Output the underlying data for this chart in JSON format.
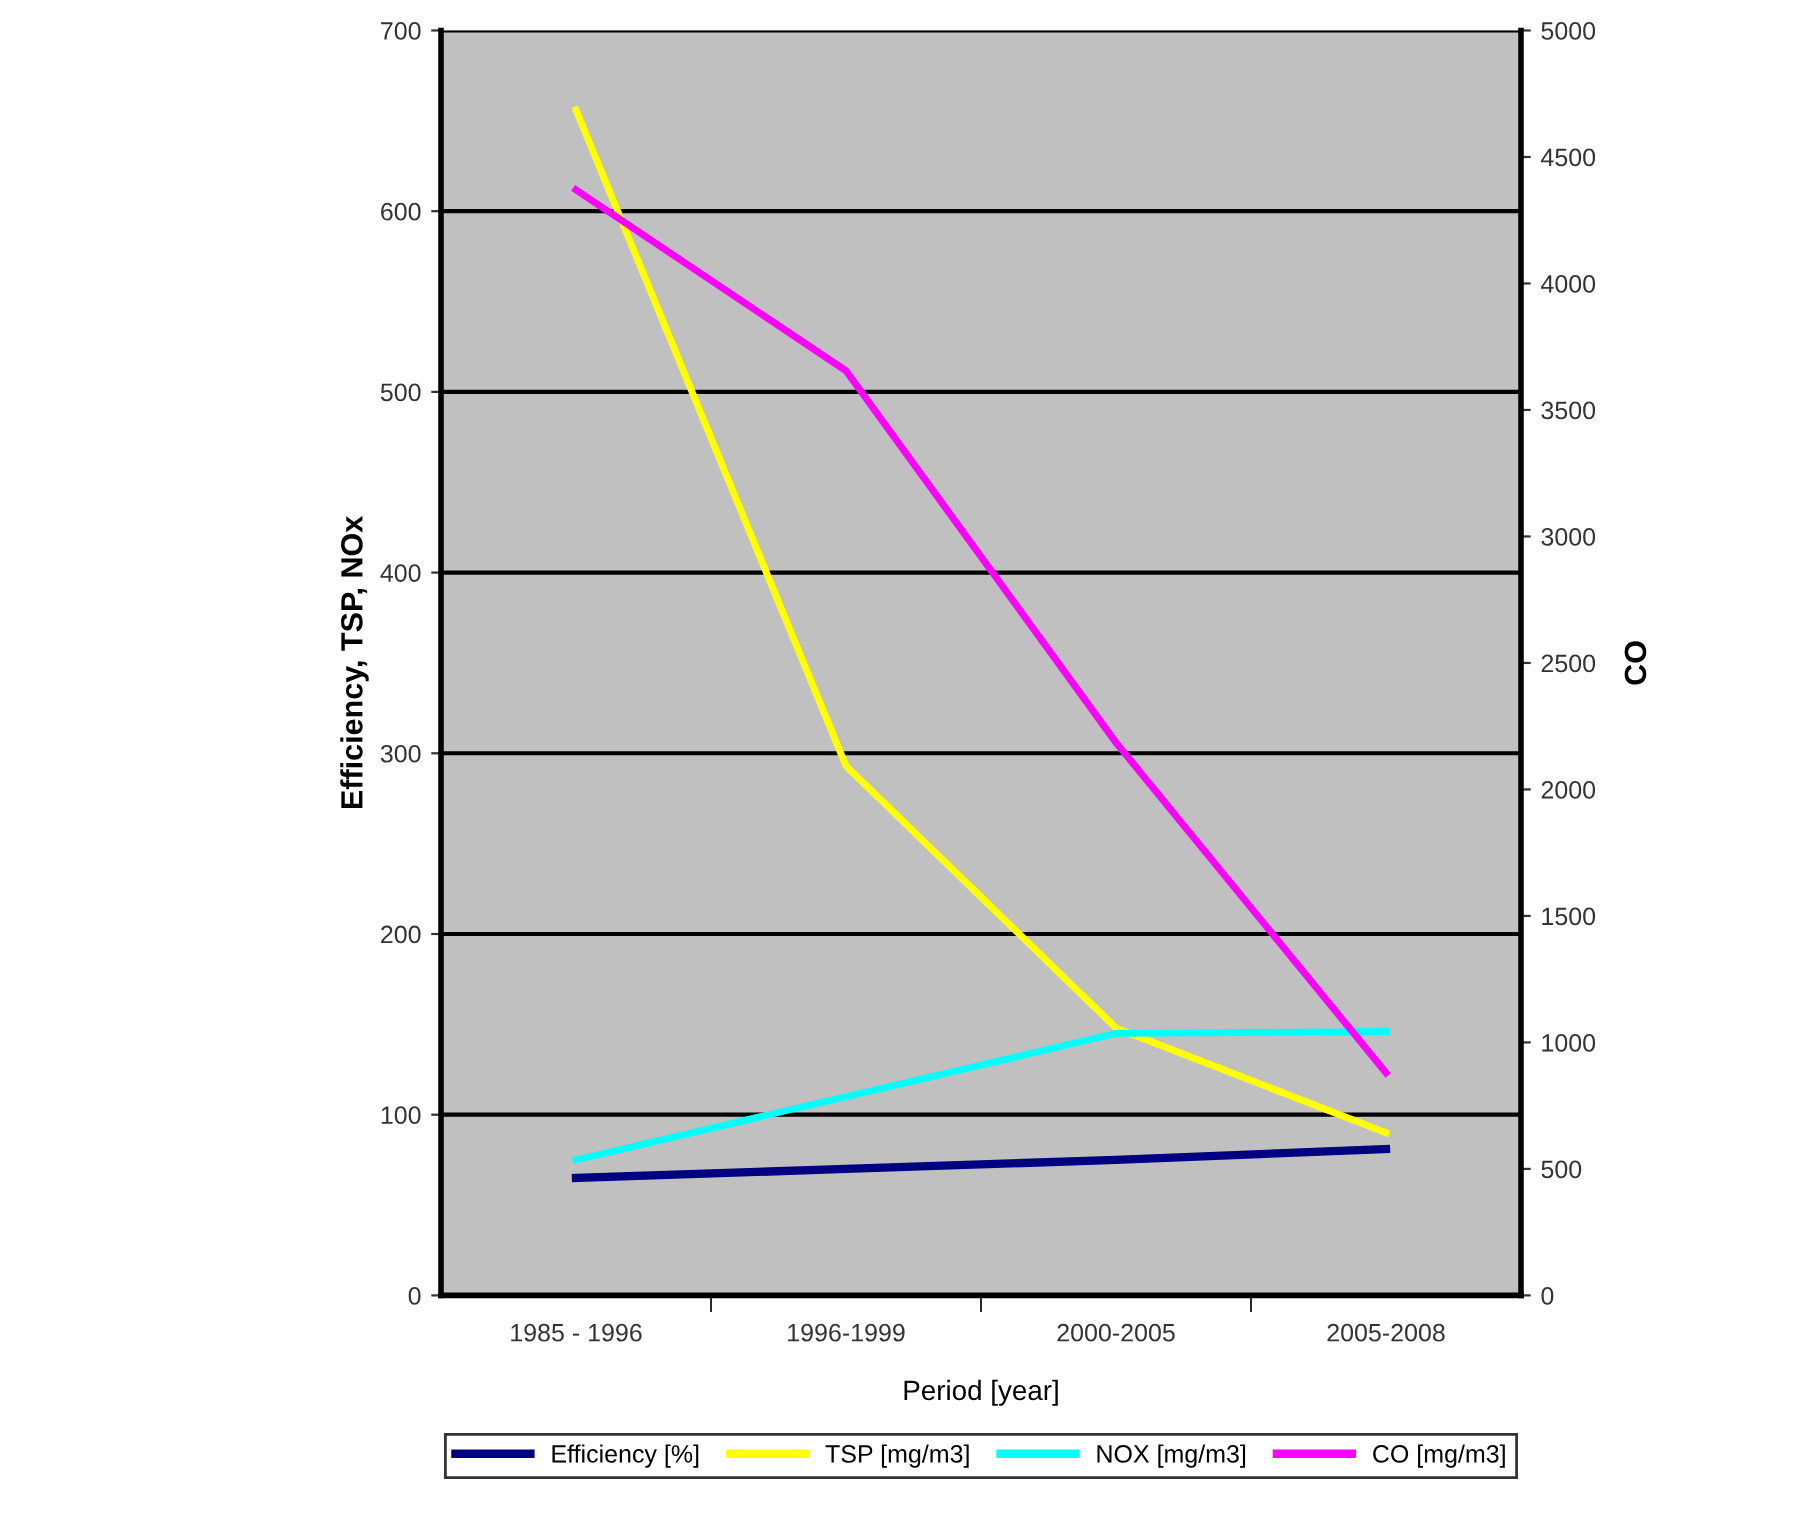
{
  "chart_data": {
    "type": "line",
    "xlabel": "Period [year]",
    "ylabel": "Efficiency, TSP, NOx",
    "y2label": "CO",
    "categories": [
      "1985 - 1996",
      "1996-1999",
      "2000-2005",
      "2005-2008"
    ],
    "series": [
      {
        "name": "Efficiency [%]",
        "color": "#000080",
        "values": [
          65,
          70,
          75,
          81
        ]
      },
      {
        "name": "TSP [mg/m3]",
        "color": "#ffff00",
        "values": [
          656,
          293,
          148,
          90
        ]
      },
      {
        "name": "NOX [mg/m3]",
        "color": "#00ffff",
        "values": [
          75,
          110,
          145,
          146
        ]
      },
      {
        "name": "CO [mg/m3]",
        "color": "#ff00ff",
        "values": [
          4370,
          3655,
          2185,
          880
        ],
        "axis": "y2"
      }
    ],
    "ylim": [
      0,
      700
    ],
    "yticks": [
      0,
      100,
      200,
      300,
      400,
      500,
      600,
      700
    ],
    "y2lim": [
      0,
      5000
    ],
    "y2ticks": [
      0,
      500,
      1000,
      1500,
      2000,
      2500,
      3000,
      3500,
      4000,
      4500,
      5000
    ],
    "grid": "y",
    "legend": "bottom",
    "marker": "none",
    "line_style": "solid"
  }
}
